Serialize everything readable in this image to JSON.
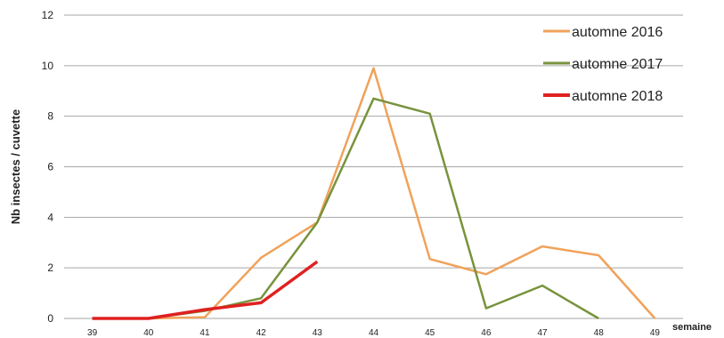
{
  "chart_data": {
    "type": "line",
    "title": "",
    "xlabel": "semaine",
    "ylabel": "Nb insectes / cuvette",
    "x": [
      39,
      40,
      41,
      42,
      43,
      44,
      45,
      46,
      47,
      48,
      49
    ],
    "xticks": [
      "39",
      "40",
      "41",
      "42",
      "43",
      "44",
      "45",
      "46",
      "47",
      "48",
      "49"
    ],
    "ylim": [
      0,
      12
    ],
    "yticks": [
      "0",
      "2",
      "4",
      "6",
      "8",
      "10",
      "12"
    ],
    "grid": true,
    "legend_position": "top-right",
    "series": [
      {
        "name": "automne 2016",
        "color": "#f0a25a",
        "values": [
          0,
          0,
          0.05,
          2.4,
          3.8,
          9.9,
          2.35,
          1.75,
          2.85,
          2.5,
          0
        ]
      },
      {
        "name": "automne 2017",
        "color": "#77933c",
        "values": [
          0,
          0,
          0.3,
          0.8,
          3.8,
          8.7,
          8.1,
          0.4,
          1.3,
          0,
          null
        ]
      },
      {
        "name": "automne 2018",
        "color": "#e02020",
        "values": [
          0,
          0,
          0.35,
          0.62,
          2.25,
          null,
          null,
          null,
          null,
          null,
          null
        ]
      }
    ]
  }
}
